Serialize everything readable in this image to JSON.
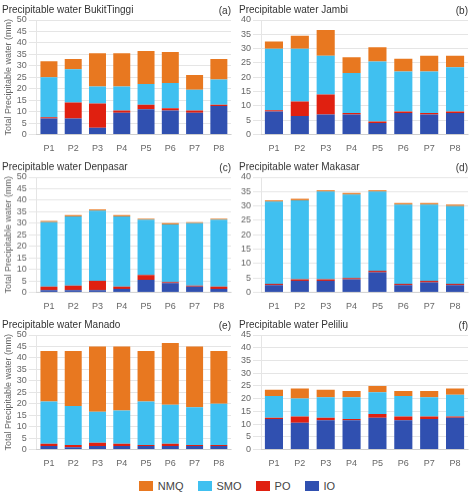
{
  "chart_data": [
    {
      "type": "bar",
      "title": "Precipitable water BukitTinggi",
      "annotations": [
        "(a)"
      ],
      "ylabel": "Total Precipitable water (mm)",
      "categories": [
        "P1",
        "P2",
        "P3",
        "P4",
        "P5",
        "P6",
        "P7",
        "P8"
      ],
      "series": [
        {
          "name": "IO",
          "color": "#3050B0",
          "values": [
            7.0,
            7.0,
            3.0,
            9.5,
            11.0,
            10.5,
            9.5,
            12.5
          ]
        },
        {
          "name": "PO",
          "color": "#E02010",
          "values": [
            0.5,
            7.0,
            10.5,
            1.0,
            2.0,
            1.0,
            1.0,
            0.5
          ]
        },
        {
          "name": "SMO",
          "color": "#40C0F0",
          "values": [
            17.5,
            14.5,
            7.5,
            10.5,
            9.0,
            11.0,
            9.0,
            11.0
          ]
        },
        {
          "name": "NMQ",
          "color": "#E87820",
          "values": [
            7.0,
            4.5,
            14.5,
            14.5,
            14.5,
            13.5,
            6.5,
            9.0
          ]
        }
      ],
      "ylim": [
        0,
        50
      ],
      "yticks": [
        0,
        5,
        10,
        15,
        20,
        25,
        30,
        35,
        40,
        45,
        50
      ],
      "stacked": true,
      "grid": true,
      "legend": "bottom"
    },
    {
      "type": "bar",
      "title": "Precipitable water Jambi",
      "annotations": [
        "(b)"
      ],
      "categories": [
        "P1",
        "P2",
        "P3",
        "P4",
        "P5",
        "P6",
        "P7",
        "P8"
      ],
      "series": [
        {
          "name": "IO",
          "color": "#3050B0",
          "values": [
            8.0,
            6.5,
            7.0,
            7.0,
            4.0,
            7.5,
            7.0,
            7.5
          ]
        },
        {
          "name": "PO",
          "color": "#E02010",
          "values": [
            0.5,
            5.0,
            7.0,
            0.5,
            0.5,
            0.5,
            0.5,
            0.5
          ]
        },
        {
          "name": "SMO",
          "color": "#40C0F0",
          "values": [
            21.5,
            18.5,
            13.5,
            14.0,
            21.0,
            14.0,
            14.5,
            15.5
          ]
        },
        {
          "name": "NMQ",
          "color": "#E87820",
          "values": [
            2.5,
            4.5,
            9.0,
            5.5,
            5.0,
            4.5,
            5.5,
            4.0
          ]
        }
      ],
      "ylim": [
        0,
        40
      ],
      "yticks": [
        0,
        5,
        10,
        15,
        20,
        25,
        30,
        35,
        40
      ],
      "stacked": true,
      "grid": true,
      "legend": "bottom"
    },
    {
      "type": "bar",
      "title": "Precipitable water Denpasar",
      "annotations": [
        "(c)"
      ],
      "ylabel": "Total Precipitable water (mm)",
      "categories": [
        "P1",
        "P2",
        "P3",
        "P4",
        "P5",
        "P6",
        "P7",
        "P8"
      ],
      "series": [
        {
          "name": "IO",
          "color": "#3050B0",
          "values": [
            1.0,
            1.0,
            1.0,
            1.5,
            5.5,
            4.0,
            2.5,
            1.5
          ]
        },
        {
          "name": "PO",
          "color": "#E02010",
          "values": [
            1.5,
            2.0,
            4.0,
            1.0,
            2.0,
            0.5,
            0.5,
            1.0
          ]
        },
        {
          "name": "SMO",
          "color": "#40C0F0",
          "values": [
            28.0,
            30.0,
            30.5,
            30.5,
            24.0,
            25.0,
            27.0,
            29.0
          ]
        },
        {
          "name": "NMQ",
          "color": "#E87820",
          "values": [
            0.5,
            0.5,
            0.5,
            0.5,
            0.5,
            0.5,
            0.5,
            0.5
          ]
        }
      ],
      "ylim": [
        0,
        50
      ],
      "yticks": [
        0,
        5,
        10,
        15,
        20,
        25,
        30,
        35,
        40,
        45,
        50
      ],
      "stacked": true,
      "grid": true,
      "legend": "bottom"
    },
    {
      "type": "bar",
      "title": "Precipitable water Makasar",
      "annotations": [
        "(d)"
      ],
      "categories": [
        "P1",
        "P2",
        "P3",
        "P4",
        "P5",
        "P6",
        "P7",
        "P8"
      ],
      "series": [
        {
          "name": "IO",
          "color": "#3050B0",
          "values": [
            2.5,
            4.0,
            4.0,
            4.5,
            7.0,
            2.5,
            3.5,
            2.5
          ]
        },
        {
          "name": "PO",
          "color": "#E02010",
          "values": [
            0.5,
            0.5,
            0.5,
            0.5,
            0.5,
            0.5,
            0.5,
            0.5
          ]
        },
        {
          "name": "SMO",
          "color": "#40C0F0",
          "values": [
            28.5,
            27.5,
            30.5,
            29.0,
            27.5,
            27.5,
            26.5,
            27.0
          ]
        },
        {
          "name": "NMQ",
          "color": "#E87820",
          "values": [
            0.5,
            0.5,
            0.5,
            0.5,
            0.5,
            0.5,
            0.5,
            0.5
          ]
        }
      ],
      "ylim": [
        0,
        40
      ],
      "yticks": [
        0,
        5,
        10,
        15,
        20,
        25,
        30,
        35,
        40
      ],
      "stacked": true,
      "grid": true,
      "legend": "bottom"
    },
    {
      "type": "bar",
      "title": "Precipitable water Manado",
      "annotations": [
        "(e)"
      ],
      "ylabel": "Total Precipitable water (mm)",
      "categories": [
        "P1",
        "P2",
        "P3",
        "P4",
        "P5",
        "P6",
        "P7",
        "P8"
      ],
      "series": [
        {
          "name": "IO",
          "color": "#3050B0",
          "values": [
            1.5,
            1.0,
            1.5,
            1.5,
            1.5,
            1.5,
            1.5,
            1.5
          ]
        },
        {
          "name": "PO",
          "color": "#E02010",
          "values": [
            1.0,
            1.0,
            1.5,
            1.0,
            0.5,
            1.0,
            0.5,
            0.5
          ]
        },
        {
          "name": "SMO",
          "color": "#40C0F0",
          "values": [
            18.5,
            17.0,
            13.5,
            14.5,
            19.0,
            17.0,
            16.5,
            18.0
          ]
        },
        {
          "name": "NMQ",
          "color": "#E87820",
          "values": [
            22.0,
            24.0,
            28.5,
            28.0,
            22.0,
            27.0,
            26.5,
            23.0
          ]
        }
      ],
      "ylim": [
        0,
        50
      ],
      "yticks": [
        0,
        5,
        10,
        15,
        20,
        25,
        30,
        35,
        40,
        45,
        50
      ],
      "stacked": true,
      "grid": true,
      "legend": "bottom"
    },
    {
      "type": "bar",
      "title": "Precipitable water Peliliu",
      "annotations": [
        "(f)"
      ],
      "categories": [
        "P1",
        "P2",
        "P3",
        "P4",
        "P5",
        "P6",
        "P7",
        "P8"
      ],
      "series": [
        {
          "name": "IO",
          "color": "#3050B0",
          "values": [
            12.0,
            10.5,
            11.5,
            11.5,
            12.5,
            11.5,
            12.0,
            12.5
          ]
        },
        {
          "name": "PO",
          "color": "#E02010",
          "values": [
            0.5,
            2.5,
            1.0,
            0.5,
            1.5,
            1.5,
            1.0,
            0.5
          ]
        },
        {
          "name": "SMO",
          "color": "#40C0F0",
          "values": [
            8.5,
            7.0,
            8.0,
            8.5,
            8.5,
            8.0,
            7.5,
            8.5
          ]
        },
        {
          "name": "NMQ",
          "color": "#E87820",
          "values": [
            2.5,
            4.0,
            3.0,
            2.5,
            2.5,
            2.0,
            2.5,
            2.5
          ]
        }
      ],
      "ylim": [
        0,
        45
      ],
      "yticks": [
        0,
        5,
        10,
        15,
        20,
        25,
        30,
        35,
        40,
        45
      ],
      "stacked": true,
      "grid": true,
      "legend": "bottom"
    }
  ]
}
